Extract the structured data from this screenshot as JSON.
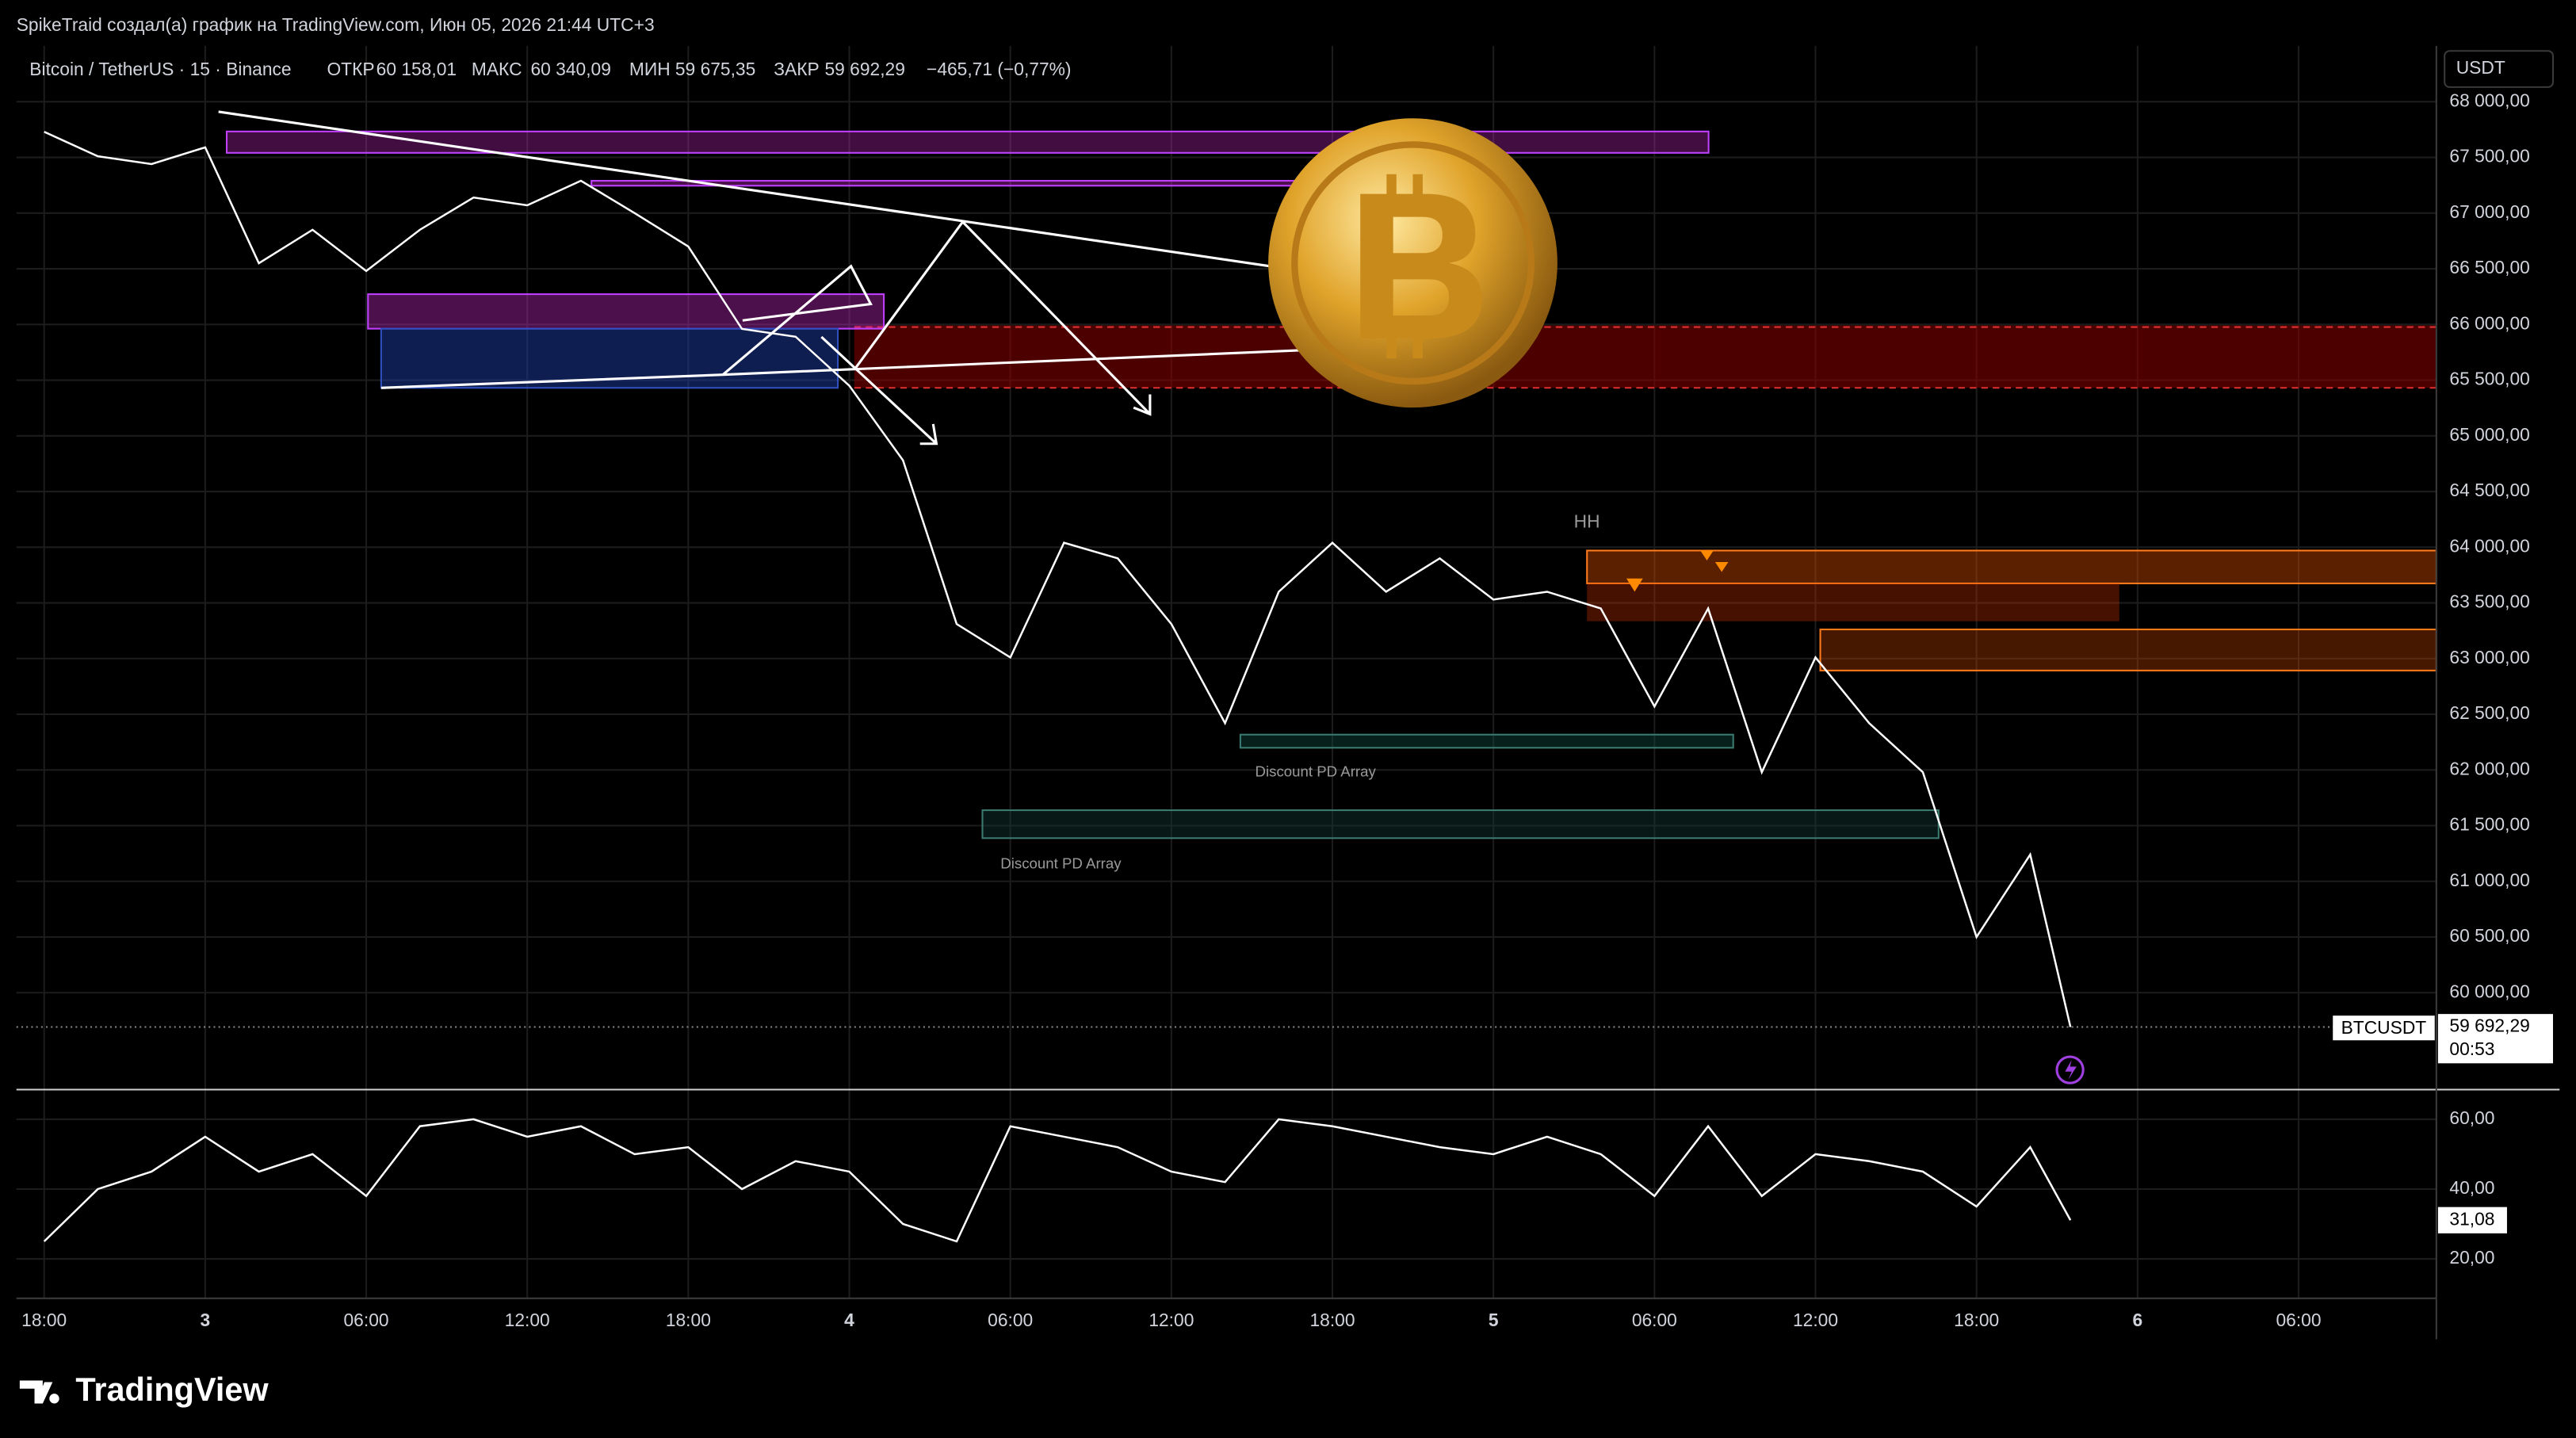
{
  "header": {
    "author_line": "SpikeTraid создал(а) график на TradingView.com, Июн 05, 2026 21:44 UTC+3",
    "symbol": "Bitcoin / TetherUS · 15 · Binance",
    "open_label": "ОТКР",
    "open": "60 158,01",
    "high_label": "МАКС",
    "high": "60 340,09",
    "low_label": "МИН",
    "low": "59 675,35",
    "close_label": "ЗАКР",
    "close": "59 692,29",
    "change": "−465,71 (−0,77%)",
    "currency": "USDT"
  },
  "annotations": {
    "hh": "HH",
    "discount_1": "Discount PD Array",
    "discount_2": "Discount PD Array"
  },
  "last_price": {
    "symbol": "BTCUSDT",
    "price": "59 692,29",
    "countdown": "00:53"
  },
  "footer": {
    "logo": "TradingView"
  },
  "chart_data": [
    {
      "type": "line",
      "color": "#ffffff",
      "x": [
        "2026-06-02T18:00",
        "2026-06-02T20:00",
        "2026-06-02T22:00",
        "2026-06-03T00:00",
        "2026-06-03T02:00",
        "2026-06-03T04:00",
        "2026-06-03T06:00",
        "2026-06-03T08:00",
        "2026-06-03T10:00",
        "2026-06-03T12:00",
        "2026-06-03T14:00",
        "2026-06-03T16:00",
        "2026-06-03T18:00",
        "2026-06-03T20:00",
        "2026-06-03T22:00",
        "2026-06-04T00:00",
        "2026-06-04T02:00",
        "2026-06-04T04:00",
        "2026-06-04T06:00",
        "2026-06-04T08:00",
        "2026-06-04T10:00",
        "2026-06-04T12:00",
        "2026-06-04T14:00",
        "2026-06-04T16:00",
        "2026-06-04T18:00",
        "2026-06-04T20:00",
        "2026-06-04T22:00",
        "2026-06-05T00:00",
        "2026-06-05T02:00",
        "2026-06-05T04:00",
        "2026-06-05T06:00",
        "2026-06-05T08:00",
        "2026-06-05T10:00",
        "2026-06-05T12:00",
        "2026-06-05T14:00",
        "2026-06-05T16:00",
        "2026-06-05T18:00",
        "2026-06-05T20:00",
        "2026-06-05T21:30"
      ],
      "values": [
        67730,
        67510,
        67440,
        67590,
        66550,
        66850,
        66480,
        66850,
        67140,
        67070,
        67290,
        67000,
        66700,
        65960,
        65890,
        65450,
        64780,
        63310,
        63010,
        64040,
        63900,
        63310,
        62420,
        63600,
        64040,
        63600,
        63900,
        63530,
        63600,
        63450,
        62570,
        63450,
        61980,
        63010,
        62420,
        61980,
        60500,
        61240,
        59692.29
      ],
      "xlim": [
        "2026-06-02T16:58",
        "2026-06-06T11:08"
      ],
      "xticks": [
        {
          "value": "2026-06-02T18:00",
          "label": "18:00"
        },
        {
          "value": "2026-06-03T00:00",
          "label": "3"
        },
        {
          "value": "2026-06-03T06:00",
          "label": "06:00"
        },
        {
          "value": "2026-06-03T12:00",
          "label": "12:00"
        },
        {
          "value": "2026-06-03T18:00",
          "label": "18:00"
        },
        {
          "value": "2026-06-04T00:00",
          "label": "4"
        },
        {
          "value": "2026-06-04T06:00",
          "label": "06:00"
        },
        {
          "value": "2026-06-04T12:00",
          "label": "12:00"
        },
        {
          "value": "2026-06-04T18:00",
          "label": "18:00"
        },
        {
          "value": "2026-06-05T00:00",
          "label": "5"
        },
        {
          "value": "2026-06-05T06:00",
          "label": "06:00"
        },
        {
          "value": "2026-06-05T12:00",
          "label": "12:00"
        },
        {
          "value": "2026-06-05T18:00",
          "label": "18:00"
        },
        {
          "value": "2026-06-06T00:00",
          "label": "6"
        },
        {
          "value": "2026-06-06T06:00",
          "label": "06:00"
        }
      ],
      "ylim": [
        59130,
        68500
      ],
      "yticks": [
        {
          "value": 60000,
          "label": "60 000,00"
        },
        {
          "value": 60500,
          "label": "60 500,00"
        },
        {
          "value": 61000,
          "label": "61 000,00"
        },
        {
          "value": 61500,
          "label": "61 500,00"
        },
        {
          "value": 62000,
          "label": "62 000,00"
        },
        {
          "value": 62500,
          "label": "62 500,00"
        },
        {
          "value": 63000,
          "label": "63 000,00"
        },
        {
          "value": 63500,
          "label": "63 500,00"
        },
        {
          "value": 64000,
          "label": "64 000,00"
        },
        {
          "value": 64500,
          "label": "64 500,00"
        },
        {
          "value": 65000,
          "label": "65 000,00"
        },
        {
          "value": 65500,
          "label": "65 500,00"
        },
        {
          "value": 66000,
          "label": "66 000,00"
        },
        {
          "value": 66500,
          "label": "66 500,00"
        },
        {
          "value": 67000,
          "label": "67 000,00"
        },
        {
          "value": 67500,
          "label": "67 500,00"
        },
        {
          "value": 68000,
          "label": "68 000,00"
        }
      ],
      "grid": true
    },
    {
      "type": "line",
      "color": "#ffffff",
      "x": [
        "2026-06-02T18:00",
        "2026-06-02T20:00",
        "2026-06-02T22:00",
        "2026-06-03T00:00",
        "2026-06-03T02:00",
        "2026-06-03T04:00",
        "2026-06-03T06:00",
        "2026-06-03T08:00",
        "2026-06-03T10:00",
        "2026-06-03T12:00",
        "2026-06-03T14:00",
        "2026-06-03T16:00",
        "2026-06-03T18:00",
        "2026-06-03T20:00",
        "2026-06-03T22:00",
        "2026-06-04T00:00",
        "2026-06-04T02:00",
        "2026-06-04T04:00",
        "2026-06-04T06:00",
        "2026-06-04T08:00",
        "2026-06-04T10:00",
        "2026-06-04T12:00",
        "2026-06-04T14:00",
        "2026-06-04T16:00",
        "2026-06-04T18:00",
        "2026-06-04T20:00",
        "2026-06-04T22:00",
        "2026-06-05T00:00",
        "2026-06-05T02:00",
        "2026-06-05T04:00",
        "2026-06-05T06:00",
        "2026-06-05T08:00",
        "2026-06-05T10:00",
        "2026-06-05T12:00",
        "2026-06-05T14:00",
        "2026-06-05T16:00",
        "2026-06-05T18:00",
        "2026-06-05T20:00",
        "2026-06-05T21:30"
      ],
      "values": [
        25,
        40,
        45,
        55,
        45,
        50,
        38,
        58,
        60,
        55,
        58,
        50,
        52,
        40,
        48,
        45,
        30,
        25,
        58,
        55,
        52,
        45,
        42,
        60,
        58,
        55,
        52,
        50,
        55,
        50,
        38,
        58,
        38,
        50,
        48,
        45,
        35,
        52,
        31.08
      ],
      "value_labels": [
        null,
        null,
        null,
        null,
        null,
        null,
        null,
        null,
        null,
        null,
        null,
        null,
        null,
        null,
        null,
        null,
        null,
        null,
        null,
        null,
        null,
        null,
        null,
        null,
        null,
        null,
        null,
        null,
        null,
        null,
        null,
        null,
        null,
        null,
        null,
        null,
        null,
        null,
        "31,08"
      ],
      "xlim": [
        "2026-06-02T16:58",
        "2026-06-06T11:08"
      ],
      "ylim": [
        8.7,
        68.5
      ],
      "yticks": [
        {
          "value": 20,
          "label": "20,00"
        },
        {
          "value": 40,
          "label": "40,00"
        },
        {
          "value": 60,
          "label": "60,00"
        }
      ],
      "grid": true
    }
  ]
}
